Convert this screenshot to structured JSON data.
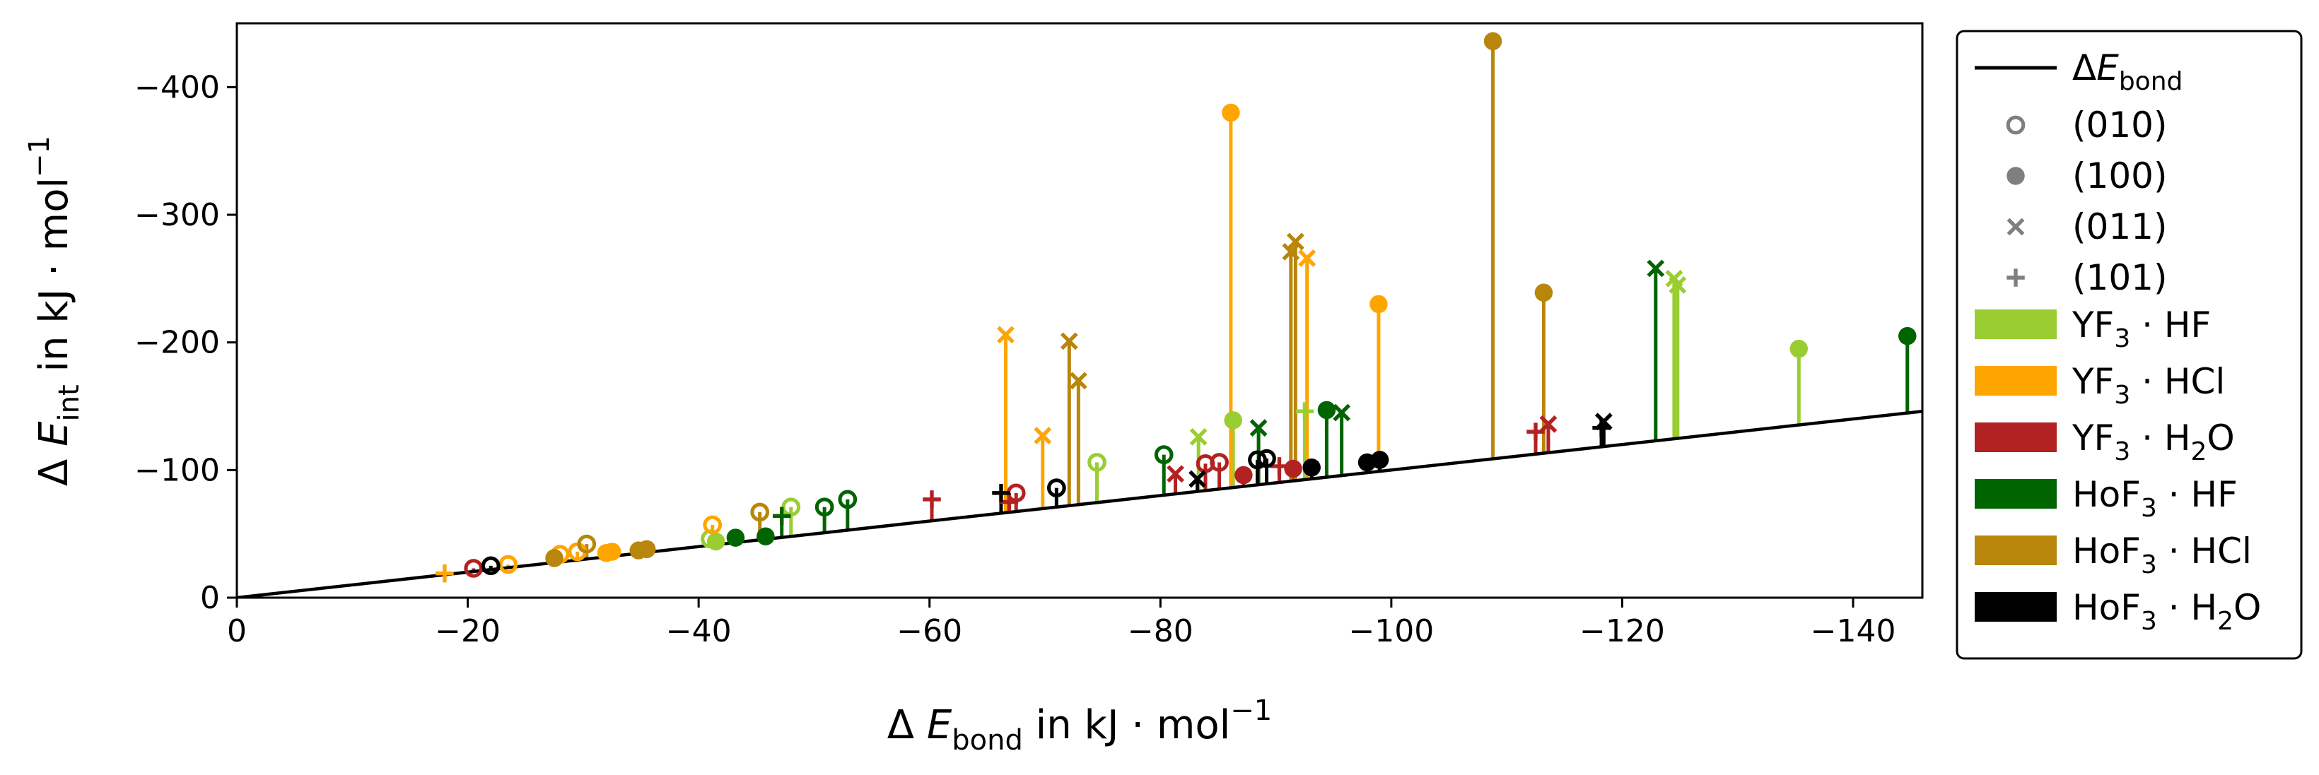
{
  "chart_data": {
    "type": "scatter",
    "title": "",
    "xlabel": "Δ E_bond in kJ · mol^-1",
    "ylabel": "Δ E_int in kJ · mol^-1",
    "xlim": [
      0,
      -146
    ],
    "ylim": [
      0,
      -450
    ],
    "x_ticks": [
      0,
      -20,
      -40,
      -60,
      -80,
      -100,
      -120,
      -140
    ],
    "x_tick_labels": [
      "0",
      "−20",
      "−40",
      "−60",
      "−80",
      "−100",
      "−120",
      "−140"
    ],
    "y_ticks": [
      0,
      -100,
      -200,
      -300,
      -400
    ],
    "y_tick_labels": [
      "0",
      "−100",
      "−200",
      "−300",
      "−400"
    ],
    "reference_line": {
      "label": "ΔE_bond",
      "x": [
        0,
        -146
      ],
      "y": [
        0,
        -146
      ],
      "color": "#000000"
    },
    "legend_position": "outside-right",
    "markers": [
      {
        "label": "(010)",
        "symbol": "open-circle"
      },
      {
        "label": "(100)",
        "symbol": "filled-circle"
      },
      {
        "label": "(011)",
        "symbol": "x"
      },
      {
        "label": "(101)",
        "symbol": "plus"
      }
    ],
    "systems": [
      {
        "id": "yf3_hf",
        "name_main": "YF",
        "name_sub1": "3",
        "name_mid": " · HF",
        "name_sub2": "",
        "name_end": "",
        "color": "#9acd32"
      },
      {
        "id": "yf3_hcl",
        "name_main": "YF",
        "name_sub1": "3",
        "name_mid": " · HCl",
        "name_sub2": "",
        "name_end": "",
        "color": "#ffa500"
      },
      {
        "id": "yf3_h2o",
        "name_main": "YF",
        "name_sub1": "3",
        "name_mid": " · H",
        "name_sub2": "2",
        "name_end": "O",
        "color": "#b22222"
      },
      {
        "id": "hof3_hf",
        "name_main": "HoF",
        "name_sub1": "3",
        "name_mid": " · HF",
        "name_sub2": "",
        "name_end": "",
        "color": "#006400"
      },
      {
        "id": "hof3_hcl",
        "name_main": "HoF",
        "name_sub1": "3",
        "name_mid": " · HCl",
        "name_sub2": "",
        "name_end": "",
        "color": "#b8860b"
      },
      {
        "id": "hof3_h2o",
        "name_main": "HoF",
        "name_sub1": "3",
        "name_mid": " · H",
        "name_sub2": "2",
        "name_end": "O",
        "color": "#000000"
      }
    ],
    "points": [
      {
        "system": "yf3_hf",
        "marker": "open-circle",
        "x": -41,
        "y": -46
      },
      {
        "system": "yf3_hf",
        "marker": "open-circle",
        "x": -48,
        "y": -71
      },
      {
        "system": "yf3_hf",
        "marker": "open-circle",
        "x": -74.5,
        "y": -106
      },
      {
        "system": "yf3_hf",
        "marker": "filled-circle",
        "x": -41.5,
        "y": -44
      },
      {
        "system": "yf3_hf",
        "marker": "filled-circle",
        "x": -86.3,
        "y": -139
      },
      {
        "system": "yf3_hf",
        "marker": "filled-circle",
        "x": -135.3,
        "y": -195
      },
      {
        "system": "yf3_hf",
        "marker": "x",
        "x": -83.3,
        "y": -126
      },
      {
        "system": "yf3_hf",
        "marker": "x",
        "x": -124.5,
        "y": -250
      },
      {
        "system": "yf3_hf",
        "marker": "x",
        "x": -124.8,
        "y": -245
      },
      {
        "system": "yf3_hf",
        "marker": "plus",
        "x": -92.5,
        "y": -146
      },
      {
        "system": "yf3_hcl",
        "marker": "open-circle",
        "x": -23.5,
        "y": -26
      },
      {
        "system": "yf3_hcl",
        "marker": "open-circle",
        "x": -28,
        "y": -34
      },
      {
        "system": "yf3_hcl",
        "marker": "open-circle",
        "x": -29.5,
        "y": -36
      },
      {
        "system": "yf3_hcl",
        "marker": "open-circle",
        "x": -41.2,
        "y": -57
      },
      {
        "system": "yf3_hcl",
        "marker": "filled-circle",
        "x": -32,
        "y": -35
      },
      {
        "system": "yf3_hcl",
        "marker": "filled-circle",
        "x": -32.5,
        "y": -36
      },
      {
        "system": "yf3_hcl",
        "marker": "filled-circle",
        "x": -86.1,
        "y": -380
      },
      {
        "system": "yf3_hcl",
        "marker": "filled-circle",
        "x": -98.9,
        "y": -230
      },
      {
        "system": "yf3_hcl",
        "marker": "x",
        "x": -66.6,
        "y": -206
      },
      {
        "system": "yf3_hcl",
        "marker": "x",
        "x": -69.8,
        "y": -127
      },
      {
        "system": "yf3_hcl",
        "marker": "x",
        "x": -92.7,
        "y": -266
      },
      {
        "system": "yf3_hcl",
        "marker": "plus",
        "x": -18,
        "y": -19
      },
      {
        "system": "yf3_h2o",
        "marker": "open-circle",
        "x": -20.5,
        "y": -23
      },
      {
        "system": "yf3_h2o",
        "marker": "open-circle",
        "x": -67.5,
        "y": -82
      },
      {
        "system": "yf3_h2o",
        "marker": "open-circle",
        "x": -83.9,
        "y": -105
      },
      {
        "system": "yf3_h2o",
        "marker": "open-circle",
        "x": -85.1,
        "y": -106
      },
      {
        "system": "yf3_h2o",
        "marker": "filled-circle",
        "x": -87.2,
        "y": -96
      },
      {
        "system": "yf3_h2o",
        "marker": "filled-circle",
        "x": -91.5,
        "y": -101
      },
      {
        "system": "yf3_h2o",
        "marker": "x",
        "x": -81.3,
        "y": -97
      },
      {
        "system": "yf3_h2o",
        "marker": "x",
        "x": -113.6,
        "y": -136
      },
      {
        "system": "yf3_h2o",
        "marker": "plus",
        "x": -60.2,
        "y": -77
      },
      {
        "system": "yf3_h2o",
        "marker": "plus",
        "x": -66.9,
        "y": -75
      },
      {
        "system": "yf3_h2o",
        "marker": "plus",
        "x": -90.3,
        "y": -103
      },
      {
        "system": "yf3_h2o",
        "marker": "plus",
        "x": -112.5,
        "y": -130
      },
      {
        "system": "hof3_hf",
        "marker": "open-circle",
        "x": -50.9,
        "y": -71
      },
      {
        "system": "hof3_hf",
        "marker": "open-circle",
        "x": -52.9,
        "y": -77
      },
      {
        "system": "hof3_hf",
        "marker": "open-circle",
        "x": -80.3,
        "y": -112
      },
      {
        "system": "hof3_hf",
        "marker": "filled-circle",
        "x": -43.2,
        "y": -47
      },
      {
        "system": "hof3_hf",
        "marker": "filled-circle",
        "x": -45.8,
        "y": -48
      },
      {
        "system": "hof3_hf",
        "marker": "filled-circle",
        "x": -94.4,
        "y": -147
      },
      {
        "system": "hof3_hf",
        "marker": "filled-circle",
        "x": -144.7,
        "y": -205
      },
      {
        "system": "hof3_hf",
        "marker": "x",
        "x": -88.5,
        "y": -133
      },
      {
        "system": "hof3_hf",
        "marker": "x",
        "x": -95.7,
        "y": -145
      },
      {
        "system": "hof3_hf",
        "marker": "x",
        "x": -122.9,
        "y": -258
      },
      {
        "system": "hof3_hf",
        "marker": "plus",
        "x": -47.2,
        "y": -64
      },
      {
        "system": "hof3_hcl",
        "marker": "open-circle",
        "x": -30.3,
        "y": -42
      },
      {
        "system": "hof3_hcl",
        "marker": "open-circle",
        "x": -45.3,
        "y": -67
      },
      {
        "system": "hof3_hcl",
        "marker": "filled-circle",
        "x": -27.5,
        "y": -31
      },
      {
        "system": "hof3_hcl",
        "marker": "filled-circle",
        "x": -34.8,
        "y": -37
      },
      {
        "system": "hof3_hcl",
        "marker": "filled-circle",
        "x": -35.5,
        "y": -38
      },
      {
        "system": "hof3_hcl",
        "marker": "filled-circle",
        "x": -108.8,
        "y": -436
      },
      {
        "system": "hof3_hcl",
        "marker": "filled-circle",
        "x": -113.2,
        "y": -239
      },
      {
        "system": "hof3_hcl",
        "marker": "x",
        "x": -72.1,
        "y": -201
      },
      {
        "system": "hof3_hcl",
        "marker": "x",
        "x": -72.9,
        "y": -170
      },
      {
        "system": "hof3_hcl",
        "marker": "x",
        "x": -91.3,
        "y": -271
      },
      {
        "system": "hof3_hcl",
        "marker": "x",
        "x": -91.7,
        "y": -279
      },
      {
        "system": "hof3_h2o",
        "marker": "open-circle",
        "x": -22,
        "y": -25
      },
      {
        "system": "hof3_h2o",
        "marker": "open-circle",
        "x": -71,
        "y": -86
      },
      {
        "system": "hof3_h2o",
        "marker": "open-circle",
        "x": -88.4,
        "y": -108
      },
      {
        "system": "hof3_h2o",
        "marker": "open-circle",
        "x": -89.2,
        "y": -109
      },
      {
        "system": "hof3_h2o",
        "marker": "filled-circle",
        "x": -93.1,
        "y": -102
      },
      {
        "system": "hof3_h2o",
        "marker": "filled-circle",
        "x": -97.9,
        "y": -106
      },
      {
        "system": "hof3_h2o",
        "marker": "filled-circle",
        "x": -99,
        "y": -108
      },
      {
        "system": "hof3_h2o",
        "marker": "x",
        "x": -83.2,
        "y": -93
      },
      {
        "system": "hof3_h2o",
        "marker": "x",
        "x": -118.4,
        "y": -138
      },
      {
        "system": "hof3_h2o",
        "marker": "plus",
        "x": -66.2,
        "y": -82
      },
      {
        "system": "hof3_h2o",
        "marker": "plus",
        "x": -118.2,
        "y": -133
      }
    ]
  }
}
